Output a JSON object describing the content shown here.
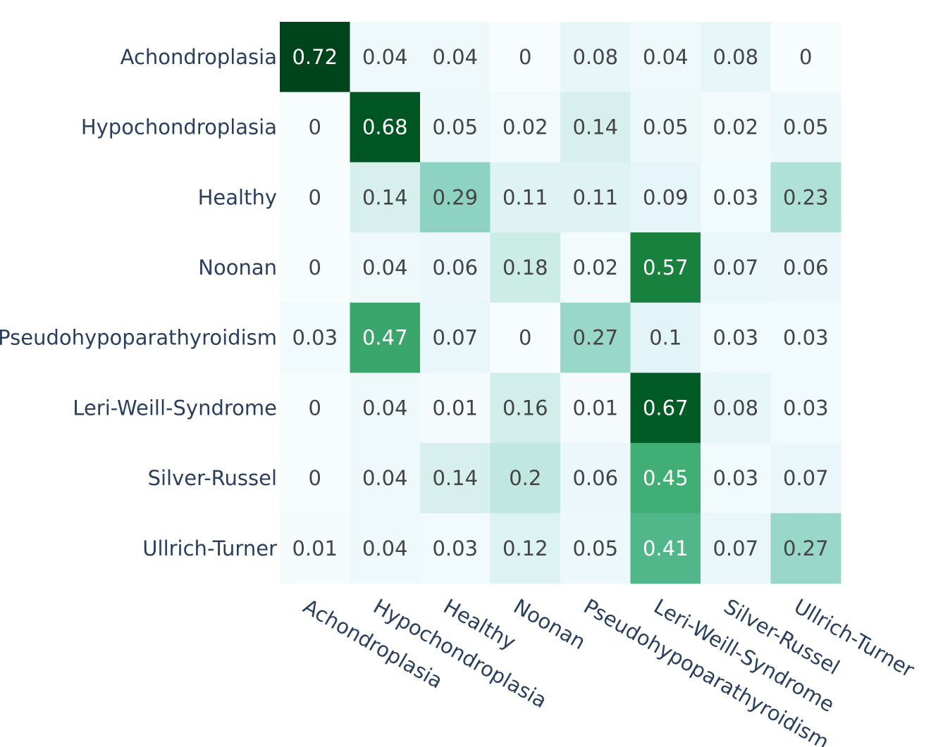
{
  "chart_data": {
    "type": "heatmap",
    "title": "",
    "xlabel": "",
    "ylabel": "",
    "categories_x": [
      "Achondroplasia",
      "Hypochondroplasia",
      "Healthy",
      "Noonan",
      "Pseudohypoparathyroidism",
      "Leri-Weill-Syndrome",
      "Silver-Russel",
      "Ullrich-Turner"
    ],
    "categories_y": [
      "Achondroplasia",
      "Hypochondroplasia",
      "Healthy",
      "Noonan",
      "Pseudohypoparathyroidism",
      "Leri-Weill-Syndrome",
      "Silver-Russel",
      "Ullrich-Turner"
    ],
    "values": [
      [
        0.72,
        0.04,
        0.04,
        0,
        0.08,
        0.04,
        0.08,
        0
      ],
      [
        0,
        0.68,
        0.05,
        0.02,
        0.14,
        0.05,
        0.02,
        0.05
      ],
      [
        0,
        0.14,
        0.29,
        0.11,
        0.11,
        0.09,
        0.03,
        0.23
      ],
      [
        0,
        0.04,
        0.06,
        0.18,
        0.02,
        0.57,
        0.07,
        0.06
      ],
      [
        0.03,
        0.47,
        0.07,
        0,
        0.27,
        0.1,
        0.03,
        0.03
      ],
      [
        0,
        0.04,
        0.01,
        0.16,
        0.01,
        0.67,
        0.08,
        0.03
      ],
      [
        0,
        0.04,
        0.14,
        0.2,
        0.06,
        0.45,
        0.03,
        0.07
      ],
      [
        0.01,
        0.04,
        0.03,
        0.12,
        0.05,
        0.41,
        0.07,
        0.27
      ]
    ],
    "zlim": [
      0,
      0.72
    ],
    "colorscale": "Greens",
    "colorscale_stops": [
      "#f7fcfd",
      "#e5f5f9",
      "#ccece6",
      "#99d8c9",
      "#66c2a4",
      "#41ae76",
      "#238b45",
      "#006d2c",
      "#00441b"
    ],
    "text_color_light": "#ffffff",
    "text_color_dark": "#444444",
    "legend": "none",
    "grid": false
  }
}
